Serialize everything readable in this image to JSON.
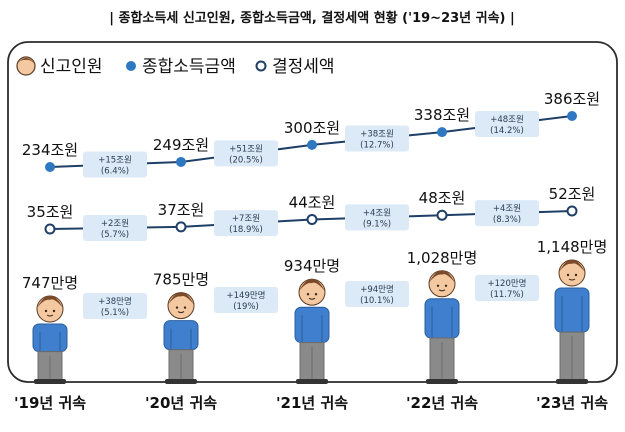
{
  "header": {
    "title": "| 종합소득세 신고인원, 종합소득금액, 결정세액 현황 ('19~23년 귀속) |"
  },
  "colors": {
    "income_line": "#1f3f66",
    "income_dot": "#2e78c2",
    "tax_line": "#1f3f66",
    "tax_dot_stroke": "#1f3f66",
    "frame": "#2b2b2b",
    "label_text": "#111111",
    "box_fill": "#dce9f6",
    "box_text": "#2a3d55",
    "shirt": "#3f7fcd",
    "pants": "#8a8a8a",
    "skin": "#f4c8a0",
    "hair": "#7a4a2a"
  },
  "chart_data": {
    "type": "line",
    "legend": {
      "position": "top-left",
      "items": [
        {
          "name": "신고인원",
          "icon": "person-icon"
        },
        {
          "name": "종합소득금액",
          "icon": "filled-dot-icon"
        },
        {
          "name": "결정세액",
          "icon": "hollow-dot-icon"
        }
      ]
    },
    "categories": [
      "'19년 귀속",
      "'20년 귀속",
      "'21년 귀속",
      "'22년 귀속",
      "'23년 귀속"
    ],
    "series": [
      {
        "name": "종합소득금액",
        "values": [
          234,
          249,
          300,
          338,
          386
        ],
        "labels": [
          "234조원",
          "249조원",
          "300조원",
          "338조원",
          "386조원"
        ],
        "changes": [
          {
            "amount": "+15조원",
            "pct": "(6.4%)"
          },
          {
            "amount": "+51조원",
            "pct": "(20.5%)"
          },
          {
            "amount": "+38조원",
            "pct": "(12.7%)"
          },
          {
            "amount": "+48조원",
            "pct": "(14.2%)"
          }
        ]
      },
      {
        "name": "결정세액",
        "values": [
          35,
          37,
          44,
          48,
          52
        ],
        "labels": [
          "35조원",
          "37조원",
          "44조원",
          "48조원",
          "52조원"
        ],
        "changes": [
          {
            "amount": "+2조원",
            "pct": "(5.7%)"
          },
          {
            "amount": "+7조원",
            "pct": "(18.9%)"
          },
          {
            "amount": "+4조원",
            "pct": "(9.1%)"
          },
          {
            "amount": "+4조원",
            "pct": "(8.3%)"
          }
        ]
      },
      {
        "name": "신고인원",
        "values": [
          747,
          785,
          934,
          1028,
          1148
        ],
        "labels": [
          "747만명",
          "785만명",
          "934만명",
          "1,028만명",
          "1,148만명"
        ],
        "changes": [
          {
            "amount": "+38만명",
            "pct": "(5.1%)"
          },
          {
            "amount": "+149만명",
            "pct": "(19%)"
          },
          {
            "amount": "+94만명",
            "pct": "(10.1%)"
          },
          {
            "amount": "+120만명",
            "pct": "(11.7%)"
          }
        ]
      }
    ]
  }
}
